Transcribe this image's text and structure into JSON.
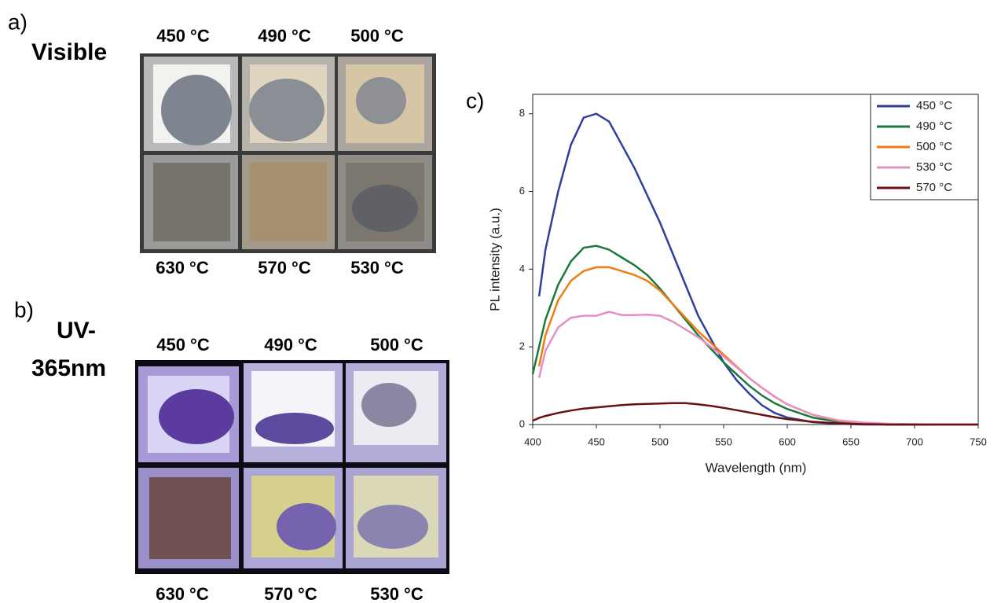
{
  "panels": [
    {
      "label": "a)",
      "title": [
        "Visible"
      ],
      "top_labels": [
        "450 °C",
        "490 °C",
        "500 °C"
      ],
      "bottom_labels": [
        "630 °C",
        "570 °C",
        "530 °C"
      ]
    },
    {
      "label": "b)",
      "title": [
        "UV-",
        "365nm"
      ],
      "top_labels": [
        "450 °C",
        "490 °C",
        "500 °C"
      ],
      "bottom_labels": [
        "630 °C",
        "570 °C",
        "530 °C"
      ]
    }
  ],
  "chart_label": "c)",
  "chart_data": {
    "type": "line",
    "x_label": "Wavelength (nm)",
    "y_label": "PL intensity (a.u.)",
    "x": [
      400,
      405,
      410,
      420,
      430,
      440,
      450,
      460,
      470,
      480,
      490,
      500,
      510,
      520,
      530,
      540,
      550,
      560,
      570,
      580,
      590,
      600,
      620,
      640,
      660,
      680,
      700,
      720,
      750
    ],
    "series": [
      {
        "name": "450 °C",
        "color": "#2e3f9e",
        "values": [
          null,
          3.3,
          4.5,
          6.0,
          7.2,
          7.9,
          8.0,
          7.8,
          7.2,
          6.6,
          5.9,
          5.2,
          4.4,
          3.6,
          2.8,
          2.2,
          1.6,
          1.15,
          0.8,
          0.5,
          0.3,
          0.18,
          0.06,
          0.02,
          0,
          0,
          0,
          0,
          0
        ]
      },
      {
        "name": "490 °C",
        "color": "#1a7a3a",
        "values": [
          1.3,
          2.0,
          2.7,
          3.6,
          4.2,
          4.55,
          4.6,
          4.5,
          4.3,
          4.1,
          3.85,
          3.5,
          3.1,
          2.7,
          2.3,
          1.95,
          1.6,
          1.3,
          1.0,
          0.75,
          0.55,
          0.4,
          0.18,
          0.07,
          0.02,
          0,
          0,
          0,
          0
        ]
      },
      {
        "name": "500 °C",
        "color": "#ef7d12",
        "values": [
          null,
          1.5,
          2.3,
          3.2,
          3.7,
          3.95,
          4.05,
          4.05,
          3.95,
          3.85,
          3.7,
          3.45,
          3.1,
          2.75,
          2.4,
          2.1,
          1.8,
          1.5,
          1.2,
          0.95,
          0.72,
          0.52,
          0.25,
          0.1,
          0.04,
          0.01,
          0,
          0,
          0
        ]
      },
      {
        "name": "530 °C",
        "color": "#e58fc4",
        "values": [
          null,
          1.2,
          1.9,
          2.5,
          2.75,
          2.8,
          2.8,
          2.9,
          2.82,
          2.82,
          2.83,
          2.8,
          2.65,
          2.45,
          2.25,
          2.0,
          1.75,
          1.48,
          1.2,
          0.95,
          0.72,
          0.52,
          0.25,
          0.11,
          0.05,
          0.02,
          0.01,
          0,
          0
        ]
      },
      {
        "name": "570 °C",
        "color": "#6b1010",
        "values": [
          0.1,
          0.17,
          0.22,
          0.3,
          0.36,
          0.41,
          0.44,
          0.47,
          0.5,
          0.52,
          0.53,
          0.54,
          0.55,
          0.55,
          0.52,
          0.48,
          0.43,
          0.37,
          0.31,
          0.25,
          0.19,
          0.14,
          0.07,
          0.03,
          0.01,
          0,
          0,
          0,
          0
        ]
      }
    ],
    "xlim": [
      400,
      750
    ],
    "xticks": [
      400,
      450,
      500,
      550,
      600,
      650,
      700,
      750
    ],
    "ylim": [
      0,
      8.5
    ],
    "yticks": [
      0,
      2,
      4,
      6,
      8
    ],
    "legend": "top-right"
  }
}
